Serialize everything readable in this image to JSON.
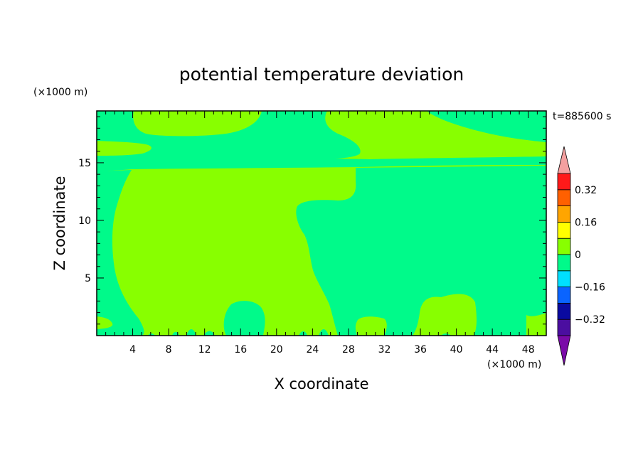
{
  "chart_data": {
    "type": "heatmap",
    "title": "potential temperature deviation",
    "xlabel": "X coordinate",
    "ylabel": "Z coordinate",
    "x_unit": "(×1000 m)",
    "y_unit": "(×1000 m)",
    "time_label": "t=885600 s",
    "xlim": [
      0,
      50
    ],
    "ylim": [
      0,
      19.5
    ],
    "x_ticks": [
      4,
      8,
      12,
      16,
      20,
      24,
      28,
      32,
      36,
      40,
      44,
      48
    ],
    "y_ticks": [
      5,
      10,
      15
    ],
    "colorbar": {
      "levels": [
        -0.4,
        -0.32,
        -0.24,
        -0.16,
        -0.08,
        0,
        0.08,
        0.16,
        0.24,
        0.32,
        0.4
      ],
      "labels": [
        "0.32",
        "0.16",
        "0",
        "-0.16",
        "-0.32"
      ],
      "label_values": [
        0.32,
        0.16,
        0,
        -0.16,
        -0.32
      ],
      "colors": [
        "#4b0ea0",
        "#0a0aa0",
        "#0a64ff",
        "#00e0ff",
        "#00fa8a",
        "#88ff00",
        "#ffff00",
        "#ffa500",
        "#ff6000",
        "#ff1a1a"
      ],
      "over_color": "#f4a0a0",
      "under_color": "#7a0aa8"
    },
    "field_colors": {
      "positive": "#88ff00",
      "negative": "#00fa8a"
    }
  }
}
